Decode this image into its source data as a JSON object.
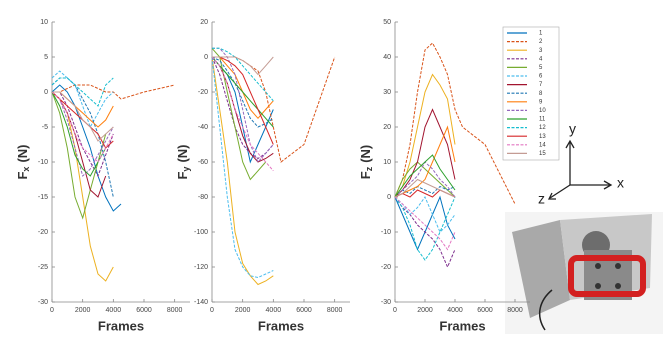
{
  "chart_data": [
    {
      "type": "line",
      "xlabel": "Frames",
      "ylabel": "F",
      "ylabel_subscript": "x",
      "ylabel_unit": "(N)",
      "x": [
        0,
        500,
        1000,
        1500,
        2000,
        2500,
        3000,
        3500,
        4000,
        4500,
        6000,
        8000
      ],
      "xlim": [
        0,
        9000
      ],
      "xticks": [
        0,
        2000,
        4000,
        6000,
        8000
      ],
      "ylim": [
        -30,
        10
      ],
      "yticks": [
        10,
        5,
        0,
        -5,
        -10,
        -15,
        -20,
        -25,
        -30
      ],
      "series": [
        {
          "color": "#0072bd",
          "values": [
            0,
            1,
            0,
            -2,
            -5,
            -8,
            -12,
            -15,
            -17,
            -16,
            null,
            null
          ]
        },
        {
          "color": "#d95319",
          "values": [
            0,
            0,
            0.5,
            1,
            1,
            1,
            0.5,
            0,
            0,
            -1,
            0,
            1
          ]
        },
        {
          "color": "#edb120",
          "values": [
            0,
            -1,
            -3,
            -8,
            -15,
            -22,
            -26,
            -27,
            -25,
            null,
            null,
            null
          ]
        },
        {
          "color": "#7e2f8e",
          "values": [
            0,
            0,
            -2,
            -5,
            -8,
            -10,
            -12,
            -9,
            -6,
            null,
            null,
            null
          ]
        },
        {
          "color": "#77ac30",
          "values": [
            0,
            -3,
            -8,
            -15,
            -18,
            -14,
            -10,
            -6,
            null,
            null,
            null,
            null
          ]
        },
        {
          "color": "#4dbeee",
          "values": [
            2,
            3,
            2,
            1,
            -2,
            -5,
            -3,
            -1,
            0,
            null,
            null,
            null
          ]
        },
        {
          "color": "#a2142f",
          "values": [
            0,
            -1,
            -3,
            -6,
            -10,
            -14,
            -15,
            -12,
            null,
            null,
            null,
            null
          ]
        },
        {
          "color": "#1f77b4",
          "values": [
            1,
            2,
            2,
            1,
            -1,
            -3,
            -6,
            -10,
            -15,
            null,
            null,
            null
          ]
        },
        {
          "color": "#ff7f0e",
          "values": [
            0,
            0,
            -1,
            -2,
            -3,
            -4,
            -5,
            -4,
            -2,
            null,
            null,
            null
          ]
        },
        {
          "color": "#9467bd",
          "values": [
            0,
            -1,
            -4,
            -8,
            -12,
            -11,
            -9,
            -7,
            -5,
            null,
            null,
            null
          ]
        },
        {
          "color": "#2ca02c",
          "values": [
            0,
            -2,
            -5,
            -9,
            -11,
            -12,
            -10,
            -8,
            null,
            null,
            null,
            null
          ]
        },
        {
          "color": "#17becf",
          "values": [
            1,
            2,
            2,
            1,
            0,
            -1,
            -2,
            1,
            2,
            null,
            null,
            null
          ]
        },
        {
          "color": "#d62728",
          "values": [
            0,
            -1,
            -2,
            -3,
            -4,
            -5,
            -6,
            -8,
            -7,
            null,
            null,
            null
          ]
        },
        {
          "color": "#e377c2",
          "values": [
            0,
            -1,
            -3,
            -6,
            -8,
            -9,
            -10,
            -8,
            -6,
            null,
            null,
            null
          ]
        },
        {
          "color": "#c49c94",
          "values": [
            0,
            0,
            -1,
            -2,
            -4,
            -5,
            -7,
            -6,
            -5,
            null,
            null,
            null
          ]
        }
      ]
    },
    {
      "type": "line",
      "xlabel": "Frames",
      "ylabel": "F",
      "ylabel_subscript": "y",
      "ylabel_unit": "(N)",
      "x": [
        0,
        500,
        1000,
        1500,
        2000,
        2500,
        3000,
        3500,
        4000,
        4500,
        6000,
        8000
      ],
      "xlim": [
        0,
        9000
      ],
      "xticks": [
        0,
        2000,
        4000,
        6000,
        8000
      ],
      "ylim": [
        -140,
        20
      ],
      "yticks": [
        20,
        0,
        -20,
        -40,
        -60,
        -80,
        -100,
        -120,
        -140
      ],
      "series": [
        {
          "color": "#0072bd",
          "values": [
            0,
            -5,
            -10,
            -20,
            -40,
            -60,
            -50,
            -40,
            -30,
            null,
            null,
            null
          ]
        },
        {
          "color": "#d95319",
          "values": [
            0,
            0,
            0,
            0,
            -2,
            -5,
            -8,
            -20,
            -40,
            -60,
            -50,
            0
          ]
        },
        {
          "color": "#edb120",
          "values": [
            0,
            -30,
            -60,
            -100,
            -118,
            -125,
            -130,
            -128,
            -125,
            null,
            null,
            null
          ]
        },
        {
          "color": "#7e2f8e",
          "values": [
            0,
            -10,
            -25,
            -40,
            -50,
            -55,
            -58,
            -55,
            -50,
            null,
            null,
            null
          ]
        },
        {
          "color": "#77ac30",
          "values": [
            5,
            0,
            -20,
            -40,
            -60,
            -70,
            -65,
            -60,
            null,
            null,
            null,
            null
          ]
        },
        {
          "color": "#4dbeee",
          "values": [
            0,
            -40,
            -80,
            -110,
            -120,
            -125,
            -126,
            -124,
            -122,
            null,
            null,
            null
          ]
        },
        {
          "color": "#a2142f",
          "values": [
            0,
            -5,
            -15,
            -30,
            -45,
            -55,
            -60,
            -58,
            -55,
            null,
            null,
            null
          ]
        },
        {
          "color": "#1f77b4",
          "values": [
            0,
            -2,
            -8,
            -15,
            -25,
            -35,
            -40,
            -38,
            -35,
            null,
            null,
            null
          ]
        },
        {
          "color": "#ff7f0e",
          "values": [
            0,
            0,
            -5,
            -10,
            -20,
            -30,
            -35,
            -30,
            -25,
            null,
            null,
            null
          ]
        },
        {
          "color": "#9467bd",
          "values": [
            5,
            5,
            0,
            -10,
            -30,
            -50,
            -60,
            -55,
            -50,
            null,
            null,
            null
          ]
        },
        {
          "color": "#2ca02c",
          "values": [
            0,
            -5,
            -10,
            -15,
            -20,
            -25,
            -30,
            -35,
            -40,
            null,
            null,
            null
          ]
        },
        {
          "color": "#17becf",
          "values": [
            5,
            5,
            3,
            0,
            -5,
            -10,
            -15,
            -20,
            -25,
            null,
            null,
            null
          ]
        },
        {
          "color": "#d62728",
          "values": [
            0,
            0,
            -2,
            -5,
            -10,
            -20,
            -30,
            -40,
            -50,
            null,
            null,
            null
          ]
        },
        {
          "color": "#e377c2",
          "values": [
            0,
            -5,
            -15,
            -30,
            -40,
            -50,
            -55,
            -60,
            -65,
            null,
            null,
            null
          ]
        },
        {
          "color": "#c49c94",
          "values": [
            0,
            0,
            0,
            0,
            -2,
            -5,
            -10,
            -5,
            0,
            null,
            null,
            null
          ]
        }
      ]
    },
    {
      "type": "line",
      "xlabel": "Frames",
      "ylabel": "F",
      "ylabel_subscript": "z",
      "ylabel_unit": "(N)",
      "x": [
        0,
        500,
        1000,
        1500,
        2000,
        2500,
        3000,
        3500,
        4000,
        4500,
        6000,
        8000
      ],
      "xlim": [
        0,
        9000
      ],
      "xticks": [
        0,
        2000,
        4000,
        6000,
        8000
      ],
      "ylim": [
        -30,
        50
      ],
      "yticks": [
        50,
        40,
        30,
        20,
        10,
        0,
        -10,
        -20,
        -30
      ],
      "legend": "upper right",
      "series": [
        {
          "name": "1",
          "color": "#0072bd",
          "values": [
            0,
            -5,
            -10,
            -15,
            -10,
            -5,
            0,
            -8,
            -12,
            null,
            null,
            null
          ]
        },
        {
          "name": "2",
          "color": "#d95319",
          "values": [
            0,
            5,
            15,
            30,
            42,
            44,
            40,
            35,
            25,
            20,
            15,
            -2
          ]
        },
        {
          "name": "3",
          "color": "#edb120",
          "values": [
            0,
            3,
            10,
            20,
            30,
            35,
            32,
            28,
            15,
            null,
            null,
            null
          ]
        },
        {
          "name": "4",
          "color": "#7e2f8e",
          "values": [
            0,
            -3,
            -5,
            -8,
            -10,
            -12,
            -15,
            -20,
            -15,
            null,
            null,
            null
          ]
        },
        {
          "name": "5",
          "color": "#77ac30",
          "values": [
            0,
            5,
            8,
            10,
            8,
            6,
            4,
            2,
            0,
            null,
            null,
            null
          ]
        },
        {
          "name": "6",
          "color": "#4dbeee",
          "values": [
            0,
            -2,
            -5,
            -3,
            0,
            -5,
            -10,
            -8,
            -5,
            null,
            null,
            null
          ]
        },
        {
          "name": "7",
          "color": "#a2142f",
          "values": [
            0,
            2,
            5,
            10,
            20,
            25,
            20,
            15,
            5,
            null,
            null,
            null
          ]
        },
        {
          "name": "8",
          "color": "#1f77b4",
          "values": [
            0,
            2,
            1,
            3,
            2,
            1,
            3,
            2,
            3,
            null,
            null,
            null
          ]
        },
        {
          "name": "9",
          "color": "#ff7f0e",
          "values": [
            0,
            1,
            2,
            3,
            5,
            10,
            15,
            20,
            10,
            null,
            null,
            null
          ]
        },
        {
          "name": "10",
          "color": "#9467bd",
          "values": [
            0,
            2,
            4,
            6,
            10,
            8,
            5,
            3,
            0,
            null,
            null,
            null
          ]
        },
        {
          "name": "11",
          "color": "#2ca02c",
          "values": [
            0,
            3,
            6,
            8,
            10,
            12,
            8,
            5,
            2,
            null,
            null,
            null
          ]
        },
        {
          "name": "12",
          "color": "#17becf",
          "values": [
            0,
            -3,
            -8,
            -15,
            -18,
            -15,
            -10,
            -5,
            0,
            null,
            null,
            null
          ]
        },
        {
          "name": "13",
          "color": "#d62728",
          "values": [
            0,
            1,
            0,
            2,
            1,
            0,
            2,
            1,
            0,
            null,
            null,
            null
          ]
        },
        {
          "name": "14",
          "color": "#e377c2",
          "values": [
            0,
            -2,
            -4,
            -6,
            -8,
            -10,
            -12,
            -15,
            -10,
            null,
            null,
            null
          ]
        },
        {
          "name": "15",
          "color": "#c49c94",
          "values": [
            0,
            1,
            3,
            5,
            4,
            3,
            2,
            1,
            0,
            null,
            null,
            null
          ]
        }
      ]
    }
  ],
  "axes_diagram": {
    "y": "y",
    "x": "x",
    "z": "z"
  }
}
